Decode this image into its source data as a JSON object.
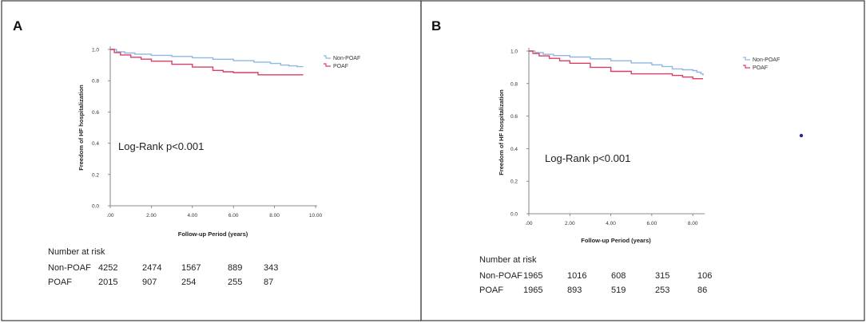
{
  "colors": {
    "non_poaf": "#8fb6e4",
    "poaf": "#dc3d64",
    "axis": "#666666",
    "frame": "#3a3a3a",
    "dot": "#1f2aa0"
  },
  "panels": [
    {
      "letter": "A",
      "annotation": "Log-Rank p<0.001",
      "risk": {
        "title": "Number at risk",
        "rows": [
          {
            "label": "Non-POAF",
            "values": [
              "4252",
              "2474",
              "1567",
              "889",
              "343"
            ]
          },
          {
            "label": "POAF",
            "values": [
              "2015",
              "907",
              "254",
              "255",
              "87"
            ]
          }
        ]
      }
    },
    {
      "letter": "B",
      "annotation": "Log-Rank p<0.001",
      "risk": {
        "title": "Number at risk",
        "rows": [
          {
            "label": "Non-POAF",
            "values": [
              "1965",
              "1016",
              "608",
              "315",
              "106"
            ]
          },
          {
            "label": "POAF",
            "values": [
              "1965",
              "893",
              "519",
              "253",
              "86"
            ]
          }
        ]
      }
    }
  ],
  "chart_data": [
    {
      "type": "line",
      "title": "",
      "xlabel": "Follow-up Period (years)",
      "ylabel": "Freedom of HF hospitalization",
      "xlim": [
        0,
        10
      ],
      "ylim": [
        0,
        1.0
      ],
      "xticks": [
        ".00",
        "2.00",
        "4.00",
        "6.00",
        "8.00",
        "10.00"
      ],
      "yticks": [
        "0.0",
        "0.2",
        "0.4",
        "0.6",
        "0.8",
        "1.0"
      ],
      "legend": "top-right",
      "series": [
        {
          "name": "Non-POAF",
          "x": [
            0,
            0.3,
            0.7,
            1.2,
            2,
            3,
            4,
            5,
            6,
            7,
            7.8,
            8.3,
            8.7,
            9.1,
            9.4
          ],
          "y": [
            1.0,
            0.985,
            0.977,
            0.97,
            0.962,
            0.955,
            0.947,
            0.937,
            0.928,
            0.919,
            0.91,
            0.9,
            0.895,
            0.89,
            0.89
          ]
        },
        {
          "name": "POAF",
          "x": [
            0,
            0.2,
            0.5,
            1,
            1.5,
            2,
            3,
            4,
            5,
            5.5,
            6,
            7,
            7.2,
            8,
            9,
            9.4
          ],
          "y": [
            1.0,
            0.98,
            0.965,
            0.95,
            0.938,
            0.925,
            0.905,
            0.887,
            0.866,
            0.857,
            0.852,
            0.852,
            0.838,
            0.838,
            0.838,
            0.838
          ]
        }
      ]
    },
    {
      "type": "line",
      "title": "",
      "xlabel": "Follow-up Period (years)",
      "ylabel": "Freedom of HF hospitalization",
      "xlim": [
        0,
        8.5
      ],
      "ylim": [
        0,
        1.0
      ],
      "xticks": [
        ".00",
        "2.00",
        "4.00",
        "6.00",
        "8.00"
      ],
      "yticks": [
        "0.0",
        "0.2",
        "0.4",
        "0.6",
        "0.8",
        "1.0"
      ],
      "legend": "top-right",
      "series": [
        {
          "name": "Non-POAF",
          "x": [
            0,
            0.3,
            0.7,
            1.2,
            2,
            3,
            4,
            5,
            6,
            6.5,
            7,
            7.5,
            8,
            8.2,
            8.4,
            8.5
          ],
          "y": [
            1.0,
            0.99,
            0.98,
            0.972,
            0.963,
            0.952,
            0.94,
            0.927,
            0.915,
            0.905,
            0.89,
            0.885,
            0.88,
            0.87,
            0.86,
            0.85
          ]
        },
        {
          "name": "POAF",
          "x": [
            0,
            0.2,
            0.5,
            1,
            1.5,
            2,
            3,
            4,
            5,
            6,
            7,
            7.5,
            8,
            8.5
          ],
          "y": [
            1.0,
            0.985,
            0.97,
            0.955,
            0.94,
            0.925,
            0.9,
            0.875,
            0.86,
            0.86,
            0.85,
            0.84,
            0.83,
            0.83
          ]
        }
      ]
    }
  ]
}
